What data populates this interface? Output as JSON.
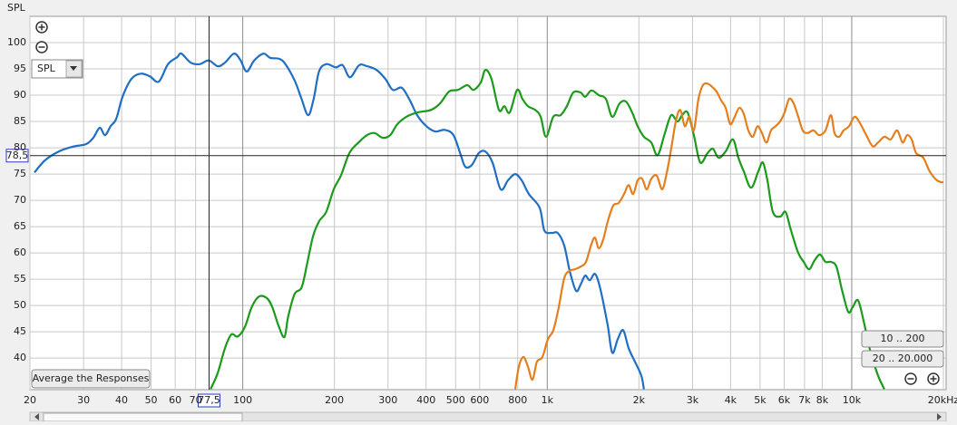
{
  "chart_data": {
    "type": "line",
    "y_label": "SPL",
    "log_x": true,
    "grid": true,
    "xlim": [
      20,
      20000
    ],
    "ylim": [
      34,
      105
    ],
    "xticks": [
      20,
      30,
      40,
      50,
      60,
      70,
      100,
      200,
      300,
      400,
      500,
      600,
      800,
      {
        "value": 1000,
        "label": "1k"
      },
      {
        "value": 2000,
        "label": "2k"
      },
      {
        "value": 3000,
        "label": "3k"
      },
      {
        "value": 4000,
        "label": "4k"
      },
      {
        "value": 5000,
        "label": "5k"
      },
      {
        "value": 6000,
        "label": "6k"
      },
      {
        "value": 7000,
        "label": "7k"
      },
      {
        "value": 8000,
        "label": "8k"
      },
      {
        "value": 10000,
        "label": "10k"
      },
      {
        "value": 20000,
        "label": "20kHz"
      }
    ],
    "yticks": [
      40,
      45,
      50,
      55,
      60,
      65,
      70,
      75,
      80,
      85,
      90,
      95,
      100
    ],
    "cursor": {
      "x": {
        "value": 77.5,
        "label": "77,5"
      },
      "y": {
        "value": 78.5,
        "label": "78,5"
      }
    },
    "series": [
      {
        "color": "#1f6fc4",
        "x": [
          20.7,
          22.4,
          24.9,
          27.6,
          30.6,
          32.3,
          33.9,
          35.3,
          36.8,
          38.4,
          40.3,
          43.1,
          46.2,
          49.5,
          53,
          56.8,
          60.8,
          62.9,
          67.4,
          72.1,
          77.3,
          82.8,
          87.4,
          93.6,
          98.2,
          103,
          109,
          117,
          123,
          132,
          138,
          148,
          156,
          164,
          171,
          178,
          188,
          202,
          213,
          225,
          241,
          256,
          275,
          294,
          311,
          333,
          354,
          374,
          401,
          429,
          460,
          492,
          520,
          538,
          565,
          596,
          626,
          661,
          703,
          743,
          785,
          824,
          870,
          944,
          978,
          1033,
          1083,
          1137,
          1185,
          1243,
          1287,
          1332,
          1379,
          1436,
          1495,
          1580,
          1635,
          1704,
          1776,
          1850,
          1941,
          2036,
          2077
        ],
        "values": [
          75.3,
          77.6,
          79.3,
          80.2,
          80.7,
          81.9,
          83.8,
          82.4,
          84.1,
          85.5,
          89.7,
          93.1,
          94.1,
          93.6,
          92.6,
          95.9,
          97.2,
          97.9,
          96.2,
          95.9,
          96.6,
          95.5,
          96.2,
          97.9,
          96.7,
          94.5,
          96.6,
          97.9,
          97.1,
          96.9,
          95.9,
          92.8,
          89.3,
          86.2,
          89.3,
          94.5,
          95.9,
          95.3,
          95.7,
          93.4,
          95.7,
          95.5,
          94.8,
          93.1,
          91,
          91.4,
          89,
          86.2,
          84.1,
          83.1,
          83.4,
          82.4,
          78.6,
          76.4,
          76.7,
          79,
          79.3,
          77.2,
          72.1,
          73.8,
          75,
          73.8,
          71.2,
          68.6,
          64.3,
          63.8,
          63.8,
          61.4,
          56.6,
          52.8,
          54,
          55.7,
          54.8,
          56,
          53.1,
          46.2,
          41,
          43.6,
          45.3,
          41.9,
          39.3,
          36.7,
          34.1
        ]
      },
      {
        "color": "#1c9a1c",
        "x": [
          78.4,
          82.8,
          87.4,
          91.7,
          96.2,
          101.6,
          107,
          113,
          120,
          125,
          131,
          137,
          141,
          148,
          156,
          162,
          170,
          178,
          188,
          199,
          210,
          224,
          240,
          256,
          271,
          288,
          305,
          322,
          345,
          374,
          415,
          444,
          476,
          509,
          546,
          572,
          605,
          626,
          656,
          694,
          723,
          753,
          796,
          829,
          864,
          913,
          951,
          991,
          1047,
          1106,
          1160,
          1217,
          1287,
          1332,
          1397,
          1476,
          1558,
          1635,
          1727,
          1812,
          1901,
          1981,
          2077,
          2196,
          2304,
          2434,
          2553,
          2679,
          2773,
          2890,
          3031,
          3180,
          3360,
          3502,
          3650,
          3855,
          4072,
          4243,
          4421,
          4670,
          4933,
          5106,
          5284,
          5506,
          5816,
          6061,
          6316,
          6672,
          6953,
          7245,
          7550,
          7868,
          8199,
          8544,
          8904,
          9279,
          9735,
          10070,
          10490,
          10935,
          11546,
          12198,
          12795
        ],
        "values": [
          34.1,
          37.2,
          41.9,
          44.5,
          44.1,
          45.9,
          49.7,
          51.7,
          51.4,
          49.7,
          46.2,
          44,
          47.9,
          52.2,
          53.4,
          57.4,
          63.1,
          66,
          67.8,
          72.1,
          74.7,
          79,
          81,
          82.4,
          82.8,
          81.9,
          82.4,
          84.5,
          85.9,
          86.7,
          87.2,
          88.4,
          90.7,
          91,
          91.9,
          91,
          92.4,
          94.8,
          93.1,
          87.2,
          87.9,
          86.7,
          91,
          89.3,
          87.9,
          87.2,
          85.9,
          82.1,
          85.9,
          86.2,
          87.9,
          90.5,
          90.5,
          89.7,
          90.9,
          90,
          89.3,
          85.9,
          88.4,
          88.8,
          86.7,
          84.1,
          82.1,
          81,
          78.6,
          82.8,
          86.2,
          85,
          86.2,
          86.7,
          82.4,
          77.2,
          79,
          79.8,
          78.1,
          79.3,
          81.6,
          78.1,
          75.5,
          72.4,
          75.5,
          77.2,
          73.8,
          67.8,
          66.9,
          67.8,
          64.3,
          60,
          58.3,
          56.9,
          58.6,
          59.7,
          58.3,
          58.3,
          57.4,
          53.1,
          48.8,
          49.7,
          51,
          47.1,
          41,
          36.7,
          34.1
        ]
      },
      {
        "color": "#e57e1c",
        "x": [
          785,
          807,
          835,
          864,
          894,
          925,
          964,
          1005,
          1047,
          1091,
          1137,
          1185,
          1234,
          1287,
          1340,
          1397,
          1436,
          1476,
          1528,
          1580,
          1647,
          1716,
          1788,
          1850,
          1915,
          1981,
          2050,
          2122,
          2196,
          2289,
          2385,
          2468,
          2553,
          2643,
          2735,
          2830,
          2929,
          3031,
          3137,
          3246,
          3360,
          3477,
          3598,
          3724,
          3855,
          3989,
          4128,
          4272,
          4421,
          4575,
          4735,
          4900,
          5071,
          5248,
          5431,
          5621,
          5816,
          6019,
          6229,
          6447,
          6672,
          6904,
          7145,
          7496,
          7812,
          8199,
          8544,
          8783,
          9089,
          9406,
          9802,
          10210,
          10640,
          11160,
          11710,
          12200,
          12800,
          13430,
          14090,
          14690,
          15200,
          15730,
          16270,
          17190,
          18030,
          19050,
          19990
        ],
        "values": [
          34.1,
          38.4,
          40.2,
          38.4,
          35.9,
          39.3,
          40.2,
          43.6,
          45.3,
          49.7,
          55.2,
          56.6,
          56.9,
          57.4,
          58.3,
          61.7,
          62.9,
          60.9,
          62.6,
          66,
          69,
          69.5,
          71.2,
          72.9,
          71.2,
          73.8,
          74.1,
          72.1,
          74.1,
          74.7,
          72.1,
          75.2,
          79.8,
          85,
          87.2,
          84.1,
          85.9,
          83.3,
          89.3,
          91.9,
          92.2,
          91.6,
          90.7,
          89,
          87.6,
          84.5,
          85.9,
          87.6,
          86.4,
          83.3,
          82.1,
          84.1,
          82.8,
          81,
          83.3,
          84.1,
          85,
          86.7,
          89.3,
          88.4,
          85.9,
          83.3,
          82.8,
          83.3,
          82.4,
          83.3,
          86.2,
          82.8,
          82.1,
          83.3,
          84.1,
          85.9,
          84.7,
          82.4,
          80.3,
          81,
          82.1,
          81.6,
          83.3,
          81,
          82.4,
          81.6,
          79,
          78.1,
          75.5,
          73.8,
          73.4
        ]
      }
    ]
  },
  "ui": {
    "y_selector": "SPL",
    "average_button": "Average the Responses",
    "range_buttons": [
      "10 .. 200",
      "20 .. 20.000"
    ]
  }
}
